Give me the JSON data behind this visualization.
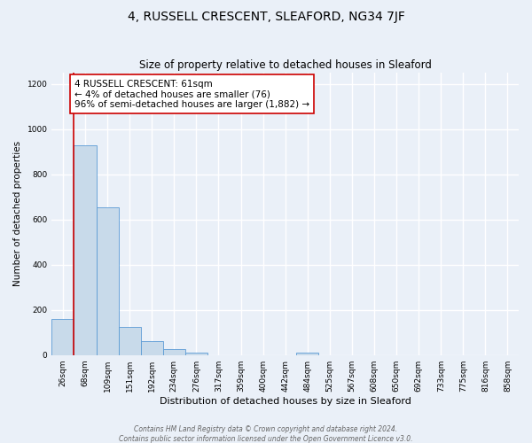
{
  "title": "4, RUSSELL CRESCENT, SLEAFORD, NG34 7JF",
  "subtitle": "Size of property relative to detached houses in Sleaford",
  "xlabel": "Distribution of detached houses by size in Sleaford",
  "ylabel": "Number of detached properties",
  "categories": [
    "26sqm",
    "68sqm",
    "109sqm",
    "151sqm",
    "192sqm",
    "234sqm",
    "276sqm",
    "317sqm",
    "359sqm",
    "400sqm",
    "442sqm",
    "484sqm",
    "525sqm",
    "567sqm",
    "608sqm",
    "650sqm",
    "692sqm",
    "733sqm",
    "775sqm",
    "816sqm",
    "858sqm"
  ],
  "values": [
    160,
    930,
    655,
    125,
    60,
    28,
    10,
    0,
    0,
    0,
    0,
    10,
    0,
    0,
    0,
    0,
    0,
    0,
    0,
    0,
    0
  ],
  "bar_color": "#c8daea",
  "bar_edge_color": "#5b9bd5",
  "annotation_line_color": "#cc0000",
  "annotation_box_text": "4 RUSSELL CRESCENT: 61sqm\n← 4% of detached houses are smaller (76)\n96% of semi-detached houses are larger (1,882) →",
  "ylim": [
    0,
    1250
  ],
  "yticks": [
    0,
    200,
    400,
    600,
    800,
    1000,
    1200
  ],
  "footer_line1": "Contains HM Land Registry data © Crown copyright and database right 2024.",
  "footer_line2": "Contains public sector information licensed under the Open Government Licence v3.0.",
  "bg_color": "#eaf0f8",
  "plot_bg_color": "#eaf0f8",
  "grid_color": "#ffffff",
  "title_fontsize": 10,
  "subtitle_fontsize": 8.5,
  "xlabel_fontsize": 8,
  "ylabel_fontsize": 7.5,
  "tick_fontsize": 6.5,
  "footer_fontsize": 5.5,
  "annotation_fontsize": 7.5
}
